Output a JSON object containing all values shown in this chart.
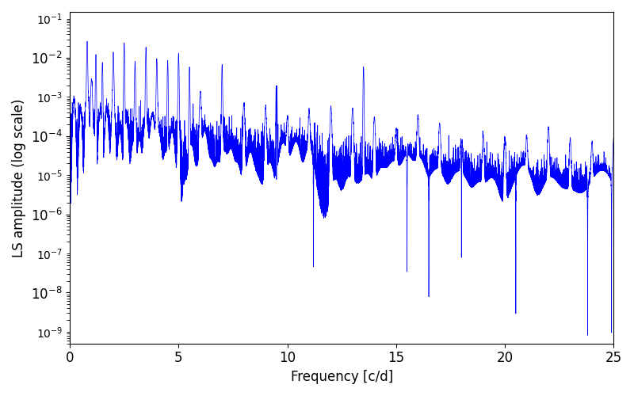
{
  "xlabel": "Frequency [c/d]",
  "ylabel": "LS amplitude (log scale)",
  "xlim": [
    0,
    25
  ],
  "ylim": [
    5e-10,
    0.15
  ],
  "yticks": [
    1e-08,
    1e-06,
    0.0001,
    0.01
  ],
  "line_color": "#0000ff",
  "line_width": 0.5,
  "figsize": [
    8.0,
    5.0
  ],
  "dpi": 100,
  "n_points": 15000,
  "freq_max": 25.0,
  "seed": 42,
  "bg_color": "#ffffff",
  "tick_labelsize": 12,
  "label_fontsize": 12
}
